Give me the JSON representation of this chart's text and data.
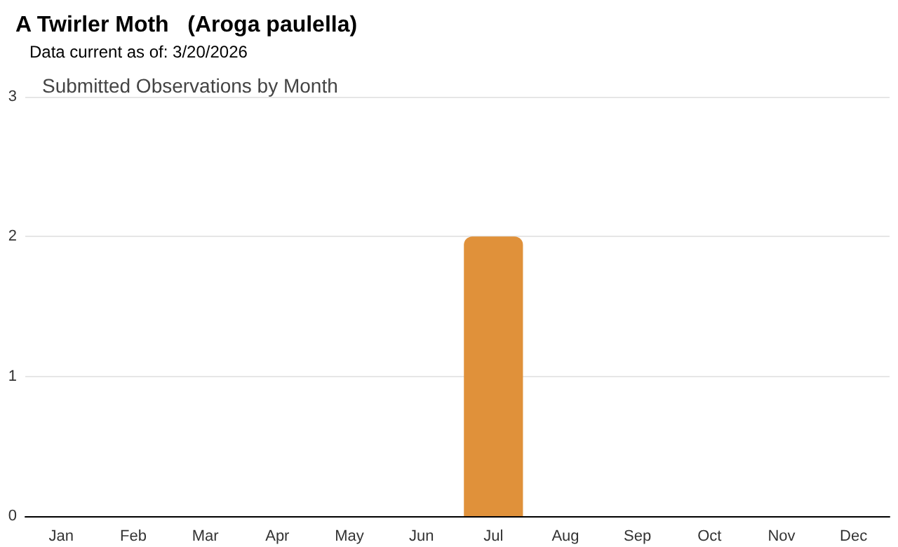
{
  "chart_data": {
    "type": "bar",
    "title": "A Twirler Moth   (Aroga paulella)",
    "subtitle": "Data current as of: 3/20/2026",
    "annotations": [
      "Submitted Observations by Month"
    ],
    "categories": [
      "Jan",
      "Feb",
      "Mar",
      "Apr",
      "May",
      "Jun",
      "Jul",
      "Aug",
      "Sep",
      "Oct",
      "Nov",
      "Dec"
    ],
    "values": [
      0,
      0,
      0,
      0,
      0,
      0,
      2,
      0,
      0,
      0,
      0,
      0
    ],
    "color": "#e0913a",
    "ylim": [
      0,
      3
    ],
    "yticks": [
      0,
      1,
      2,
      3
    ],
    "grid": "y"
  }
}
